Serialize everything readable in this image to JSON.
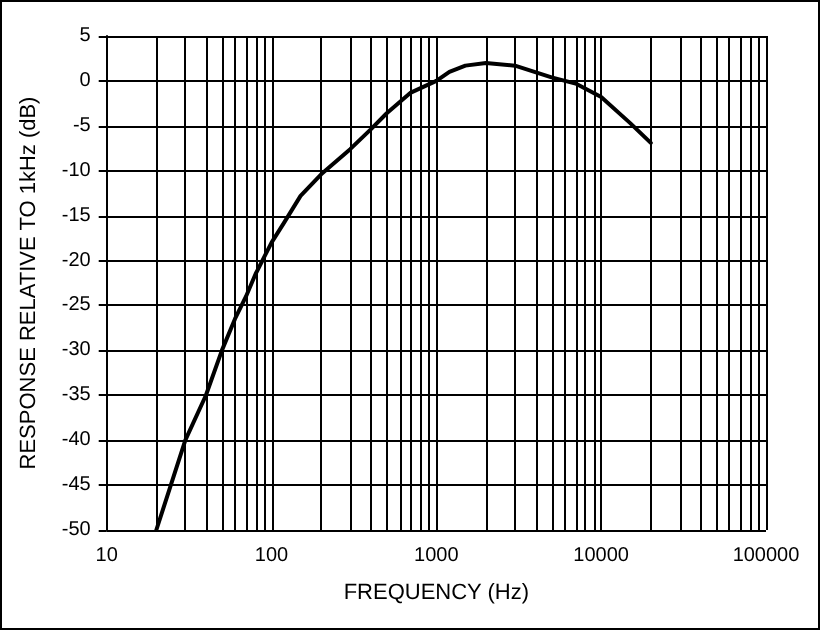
{
  "chart_data": {
    "type": "line",
    "xlabel": "FREQUENCY (Hz)",
    "ylabel": "RESPONSE RELATIVE TO 1kHz (dB)",
    "x": [
      20,
      30,
      40,
      50,
      60,
      70,
      80,
      100,
      120,
      150,
      200,
      300,
      400,
      500,
      700,
      1000,
      1200,
      1500,
      2000,
      3000,
      5000,
      7000,
      10000,
      15000,
      20000
    ],
    "series": [
      {
        "color": "#000000",
        "values": [
          -50,
          -40,
          -35,
          -30,
          -26.5,
          -24,
          -21.5,
          -18,
          -15.7,
          -12.8,
          -10.4,
          -7.6,
          -5.4,
          -3.6,
          -1.3,
          0,
          1,
          1.7,
          2,
          1.7,
          0.4,
          -0.3,
          -1.8,
          -4.7,
          -6.9
        ]
      }
    ],
    "log": "x",
    "xlim": [
      10,
      100000
    ],
    "xticks": [
      10,
      100,
      1000,
      10000,
      100000
    ],
    "ylim": [
      -50,
      5
    ],
    "yticks": [
      -50,
      -45,
      -40,
      -35,
      -30,
      -25,
      -20,
      -15,
      -10,
      -5,
      0,
      5
    ],
    "grid": true,
    "marker": "none",
    "line_style": "solid"
  }
}
